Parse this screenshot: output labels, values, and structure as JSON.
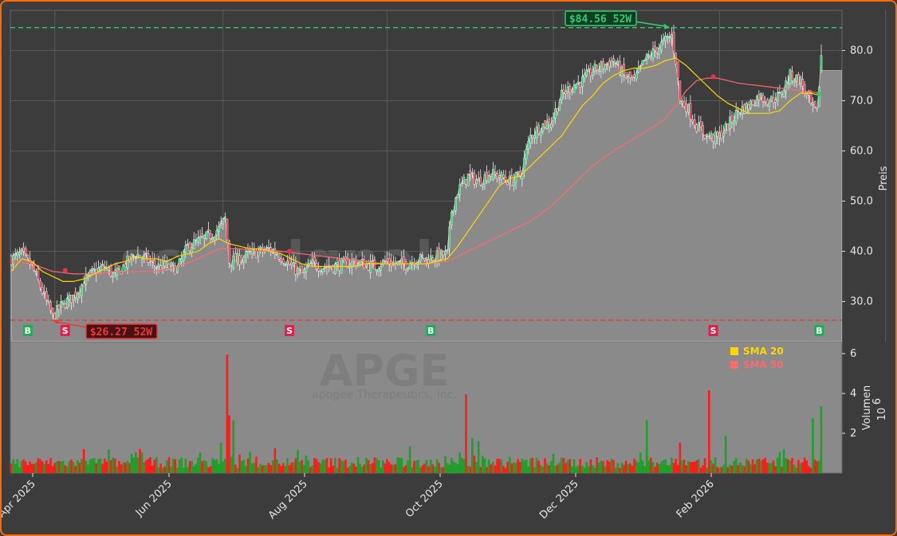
{
  "chart_data": {
    "type": "candlestick",
    "watermark": {
      "site": "scanslgnale.trade",
      "ticker": "APGE",
      "company": "apogee Therapeutics, Inc."
    },
    "x_ticks": [
      "Apr 2025",
      "Jun 2025",
      "Aug 2025",
      "Oct 2025",
      "Dec 2025",
      "Feb 2026"
    ],
    "price_axis": {
      "label": "Preis",
      "ylim": [
        22,
        88
      ],
      "ticks": [
        "30.0",
        "40.0",
        "50.0",
        "60.0",
        "70.0",
        "80.0"
      ]
    },
    "volume_axis": {
      "label": "Volumen",
      "exponent_base": "10",
      "exponent": "6",
      "ylim": [
        0,
        6.6
      ],
      "ticks": [
        "2",
        "4",
        "6"
      ]
    },
    "legend": [
      {
        "label": "SMA 20",
        "color": "#ffd700"
      },
      {
        "label": "SMA 50",
        "color": "#ff6b6b"
      }
    ],
    "high_52w": {
      "label": "$84.56 52W",
      "value": 84.56,
      "color": "#2ecc71"
    },
    "low_52w": {
      "label": "$26.27 52W",
      "value": 26.27,
      "color": "#e83a3a"
    },
    "price_anchors": [
      [
        0,
        38.5
      ],
      [
        5,
        39.5
      ],
      [
        10,
        37
      ],
      [
        15,
        32
      ],
      [
        20,
        27
      ],
      [
        25,
        29.5
      ],
      [
        30,
        31
      ],
      [
        35,
        34
      ],
      [
        40,
        36
      ],
      [
        45,
        37
      ],
      [
        50,
        35
      ],
      [
        55,
        37.5
      ],
      [
        60,
        39.5
      ],
      [
        65,
        38.5
      ],
      [
        70,
        37
      ],
      [
        75,
        37
      ],
      [
        80,
        36.5
      ],
      [
        85,
        41
      ],
      [
        90,
        42
      ],
      [
        95,
        43
      ],
      [
        100,
        44.5
      ],
      [
        103,
        46.5
      ],
      [
        105,
        38
      ],
      [
        110,
        38.5
      ],
      [
        115,
        39.5
      ],
      [
        120,
        40
      ],
      [
        125,
        40.5
      ],
      [
        130,
        39
      ],
      [
        135,
        37
      ],
      [
        140,
        35.5
      ],
      [
        145,
        37.5
      ],
      [
        150,
        37
      ],
      [
        155,
        37
      ],
      [
        160,
        37.5
      ],
      [
        165,
        38
      ],
      [
        170,
        37.5
      ],
      [
        175,
        37
      ],
      [
        180,
        38
      ],
      [
        185,
        37.5
      ],
      [
        190,
        37.5
      ],
      [
        195,
        38.5
      ],
      [
        200,
        38.5
      ],
      [
        205,
        39
      ],
      [
        210,
        39.5
      ],
      [
        212,
        48
      ],
      [
        215,
        52
      ],
      [
        220,
        55
      ],
      [
        225,
        54
      ],
      [
        230,
        55.5
      ],
      [
        235,
        55
      ],
      [
        240,
        54
      ],
      [
        245,
        55
      ],
      [
        250,
        63
      ],
      [
        255,
        65
      ],
      [
        260,
        66
      ],
      [
        265,
        71
      ],
      [
        270,
        73
      ],
      [
        275,
        74
      ],
      [
        280,
        76
      ],
      [
        285,
        77
      ],
      [
        290,
        78
      ],
      [
        295,
        75
      ],
      [
        300,
        74
      ],
      [
        305,
        78
      ],
      [
        310,
        80
      ],
      [
        315,
        82
      ],
      [
        318,
        83
      ],
      [
        320,
        78
      ],
      [
        322,
        70
      ],
      [
        325,
        69
      ],
      [
        330,
        65
      ],
      [
        335,
        63
      ],
      [
        340,
        62.5
      ],
      [
        345,
        65
      ],
      [
        350,
        68
      ],
      [
        355,
        69
      ],
      [
        360,
        71
      ],
      [
        365,
        70
      ],
      [
        370,
        71
      ],
      [
        375,
        75
      ],
      [
        380,
        74
      ],
      [
        385,
        69
      ],
      [
        388,
        67.5
      ],
      [
        390,
        79
      ]
    ],
    "sma20_anchors": [
      [
        0,
        36
      ],
      [
        5,
        38.5
      ],
      [
        10,
        38
      ],
      [
        15,
        36
      ],
      [
        20,
        35
      ],
      [
        25,
        34
      ],
      [
        30,
        34
      ],
      [
        35,
        34.5
      ],
      [
        40,
        35.5
      ],
      [
        45,
        36.5
      ],
      [
        50,
        37.5
      ],
      [
        55,
        38
      ],
      [
        60,
        39
      ],
      [
        65,
        38.5
      ],
      [
        70,
        38.5
      ],
      [
        75,
        38
      ],
      [
        80,
        39
      ],
      [
        85,
        39.5
      ],
      [
        90,
        40
      ],
      [
        95,
        41.5
      ],
      [
        100,
        42.5
      ],
      [
        105,
        41.5
      ],
      [
        110,
        41
      ],
      [
        115,
        40.5
      ],
      [
        120,
        40.5
      ],
      [
        125,
        40
      ],
      [
        130,
        39.5
      ],
      [
        135,
        38.5
      ],
      [
        140,
        37.5
      ],
      [
        145,
        37
      ],
      [
        150,
        37
      ],
      [
        155,
        37
      ],
      [
        160,
        37
      ],
      [
        165,
        37
      ],
      [
        170,
        37.5
      ],
      [
        175,
        37.5
      ],
      [
        180,
        37.5
      ],
      [
        185,
        37.5
      ],
      [
        190,
        37.5
      ],
      [
        195,
        37.5
      ],
      [
        200,
        37.5
      ],
      [
        205,
        38
      ],
      [
        210,
        38.5
      ],
      [
        215,
        41
      ],
      [
        220,
        44
      ],
      [
        225,
        47
      ],
      [
        230,
        50
      ],
      [
        235,
        53
      ],
      [
        240,
        54.5
      ],
      [
        245,
        55
      ],
      [
        250,
        57
      ],
      [
        255,
        59
      ],
      [
        260,
        61
      ],
      [
        265,
        63
      ],
      [
        270,
        66
      ],
      [
        275,
        69
      ],
      [
        280,
        71
      ],
      [
        285,
        73.5
      ],
      [
        290,
        75
      ],
      [
        295,
        76
      ],
      [
        300,
        76.5
      ],
      [
        305,
        76.5
      ],
      [
        310,
        77
      ],
      [
        315,
        78
      ],
      [
        320,
        78.5
      ],
      [
        325,
        77
      ],
      [
        330,
        75
      ],
      [
        335,
        73
      ],
      [
        340,
        71
      ],
      [
        345,
        69.5
      ],
      [
        350,
        68.5
      ],
      [
        355,
        67.5
      ],
      [
        360,
        67.5
      ],
      [
        365,
        67.5
      ],
      [
        370,
        68
      ],
      [
        375,
        70
      ],
      [
        380,
        71.5
      ],
      [
        385,
        71.5
      ],
      [
        390,
        71
      ]
    ],
    "sma50_anchors": [
      [
        0,
        38
      ],
      [
        10,
        37.5
      ],
      [
        20,
        36
      ],
      [
        30,
        35.5
      ],
      [
        40,
        35.5
      ],
      [
        50,
        36
      ],
      [
        60,
        36
      ],
      [
        70,
        36
      ],
      [
        80,
        37
      ],
      [
        90,
        38.5
      ],
      [
        100,
        40.5
      ],
      [
        110,
        40.5
      ],
      [
        120,
        40
      ],
      [
        130,
        40
      ],
      [
        140,
        39.5
      ],
      [
        150,
        39
      ],
      [
        160,
        38.5
      ],
      [
        170,
        38
      ],
      [
        180,
        37.5
      ],
      [
        190,
        37.5
      ],
      [
        200,
        37.5
      ],
      [
        210,
        38
      ],
      [
        220,
        40
      ],
      [
        230,
        42
      ],
      [
        240,
        44
      ],
      [
        250,
        46
      ],
      [
        260,
        49
      ],
      [
        270,
        53
      ],
      [
        280,
        57
      ],
      [
        290,
        60
      ],
      [
        300,
        62.5
      ],
      [
        310,
        65
      ],
      [
        315,
        66.5
      ],
      [
        320,
        69
      ],
      [
        325,
        72
      ],
      [
        330,
        74
      ],
      [
        335,
        74.5
      ],
      [
        340,
        74.5
      ],
      [
        350,
        73.5
      ],
      [
        360,
        73
      ],
      [
        370,
        72.5
      ],
      [
        380,
        72
      ],
      [
        390,
        71.5
      ]
    ],
    "signals": [
      {
        "type": "B",
        "bar": 8
      },
      {
        "type": "S",
        "bar": 26
      },
      {
        "type": "B",
        "bar": 54
      },
      {
        "type": "S",
        "bar": 134
      },
      {
        "type": "B",
        "bar": 202
      },
      {
        "type": "S",
        "bar": 338
      },
      {
        "type": "B",
        "bar": 389
      }
    ],
    "grid": true
  }
}
